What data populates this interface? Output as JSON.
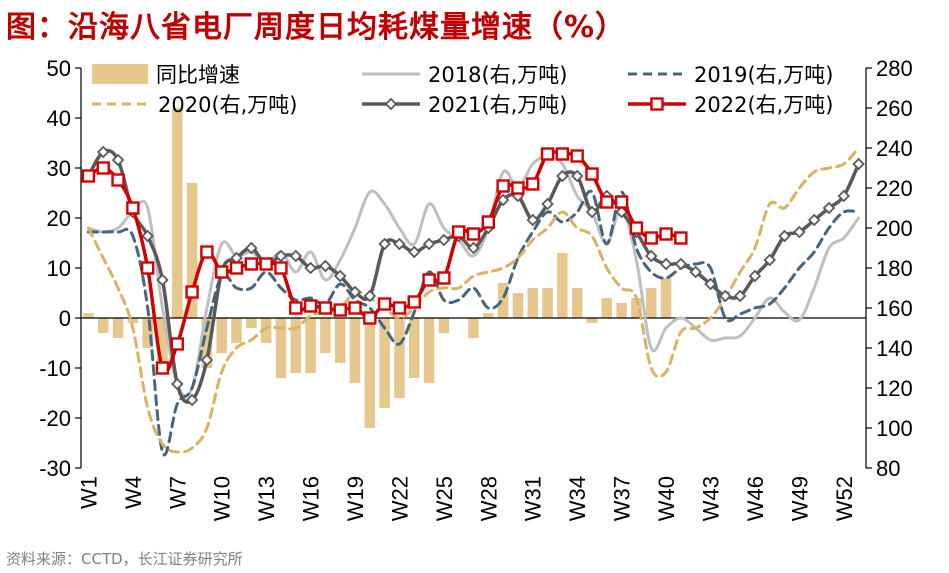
{
  "title": "图：沿海八省电厂周度日均耗煤量增速（%）",
  "source": "资料来源：CCTD，长江证券研究所",
  "colors": {
    "title": "#c00000",
    "bar": "#e6c88f",
    "s2018": "#bfbfbf",
    "s2019": "#44667f",
    "s2020": "#dbb262",
    "s2021": "#595959",
    "s2022": "#d40000"
  },
  "chart_data": {
    "type": "bar+line",
    "grid": false,
    "legend_position": "top",
    "left_axis": {
      "min": -30,
      "max": 50,
      "ticks": [
        "50",
        "40",
        "30",
        "20",
        "10",
        "0",
        "-10",
        "-20",
        "-30"
      ]
    },
    "right_axis": {
      "min": 80,
      "max": 280,
      "ticks": [
        "280",
        "260",
        "240",
        "220",
        "200",
        "180",
        "160",
        "140",
        "120",
        "100",
        "80"
      ]
    },
    "x_tick_labels": [
      "W1",
      "W4",
      "W7",
      "W10",
      "W13",
      "W16",
      "W19",
      "W22",
      "W25",
      "W28",
      "W31",
      "W34",
      "W37",
      "W40",
      "W43",
      "W46",
      "W49",
      "W52"
    ],
    "bars": {
      "name": "同比增速",
      "weeks": [
        1,
        2,
        3,
        4,
        5,
        6,
        7,
        8,
        9,
        10,
        11,
        12,
        13,
        14,
        15,
        16,
        17,
        18,
        19,
        20,
        21,
        22,
        23,
        24,
        25,
        26,
        27,
        28,
        29,
        30,
        31,
        32,
        33,
        34,
        35,
        36,
        37,
        38,
        39,
        40,
        41
      ],
      "values": [
        1,
        -3,
        -4,
        -1,
        -6,
        -9,
        42,
        27,
        -10,
        -7,
        -5,
        -2,
        -5,
        -12,
        -11,
        -11,
        -7,
        -9,
        -13,
        -22,
        -18,
        -16,
        -12,
        -13,
        -3,
        0,
        -4,
        1,
        7,
        5,
        6,
        6,
        13,
        6,
        -1,
        4,
        3,
        4,
        6,
        8,
        0
      ]
    },
    "series": [
      {
        "name": "2018(右,万吨)",
        "key": "s2018",
        "style": "solid",
        "marker": "none",
        "values": [
          200,
          198,
          200,
          208,
          210,
          160,
          122,
          120,
          160,
          192,
          186,
          188,
          182,
          188,
          178,
          188,
          174,
          184,
          200,
          218,
          212,
          200,
          192,
          212,
          200,
          194,
          186,
          200,
          228,
          220,
          232,
          236,
          232,
          216,
          208,
          192,
          210,
          184,
          140,
          150,
          155,
          150,
          144,
          145,
          146,
          155,
          165,
          158,
          154,
          170,
          190,
          195,
          205
        ]
      },
      {
        "name": "2019(右,万吨)",
        "key": "s2019",
        "style": "dashed",
        "marker": "none",
        "values": [
          198,
          198,
          198,
          196,
          160,
          88,
          112,
          120,
          150,
          176,
          170,
          170,
          178,
          170,
          164,
          165,
          162,
          172,
          164,
          160,
          150,
          142,
          158,
          178,
          164,
          164,
          170,
          160,
          165,
          185,
          198,
          208,
          203,
          208,
          218,
          192,
          218,
          190,
          178,
          175,
          180,
          182,
          180,
          155,
          157,
          160,
          162,
          170,
          180,
          188,
          200,
          208,
          208
        ]
      },
      {
        "name": "2020(右,万吨)",
        "key": "s2020",
        "style": "dashed",
        "marker": "none",
        "values": [
          200,
          185,
          170,
          150,
          110,
          92,
          88,
          90,
          100,
          128,
          140,
          144,
          150,
          150,
          150,
          156,
          158,
          160,
          168,
          165,
          160,
          155,
          160,
          168,
          170,
          170,
          176,
          178,
          180,
          185,
          194,
          200,
          208,
          200,
          196,
          180,
          170,
          165,
          130,
          128,
          148,
          150,
          155,
          165,
          178,
          190,
          212,
          210,
          220,
          228,
          230,
          232,
          240
        ]
      },
      {
        "name": "2021(右,万吨)",
        "key": "s2021",
        "style": "solid",
        "marker": "diamond",
        "values": [
          226,
          238,
          234,
          208,
          196,
          174,
          122,
          114,
          134,
          178,
          185,
          190,
          182,
          186,
          186,
          180,
          181,
          176,
          168,
          166,
          192,
          192,
          188,
          192,
          194,
          196,
          190,
          200,
          214,
          216,
          204,
          212,
          226,
          226,
          208,
          216,
          208,
          198,
          186,
          182,
          182,
          178,
          172,
          166,
          166,
          176,
          184,
          196,
          198,
          204,
          210,
          216,
          232
        ]
      },
      {
        "name": "2022(右,万吨)",
        "key": "s2022",
        "style": "solid",
        "marker": "square",
        "values": [
          226,
          230,
          224,
          210,
          180,
          130,
          142,
          168,
          188,
          178,
          180,
          182,
          182,
          180,
          160,
          161,
          160,
          159,
          160,
          155,
          162,
          160,
          163,
          174,
          175,
          198,
          197,
          203,
          221,
          220,
          222,
          237,
          237,
          236,
          227,
          213,
          213,
          200,
          195,
          197,
          195
        ]
      }
    ]
  }
}
